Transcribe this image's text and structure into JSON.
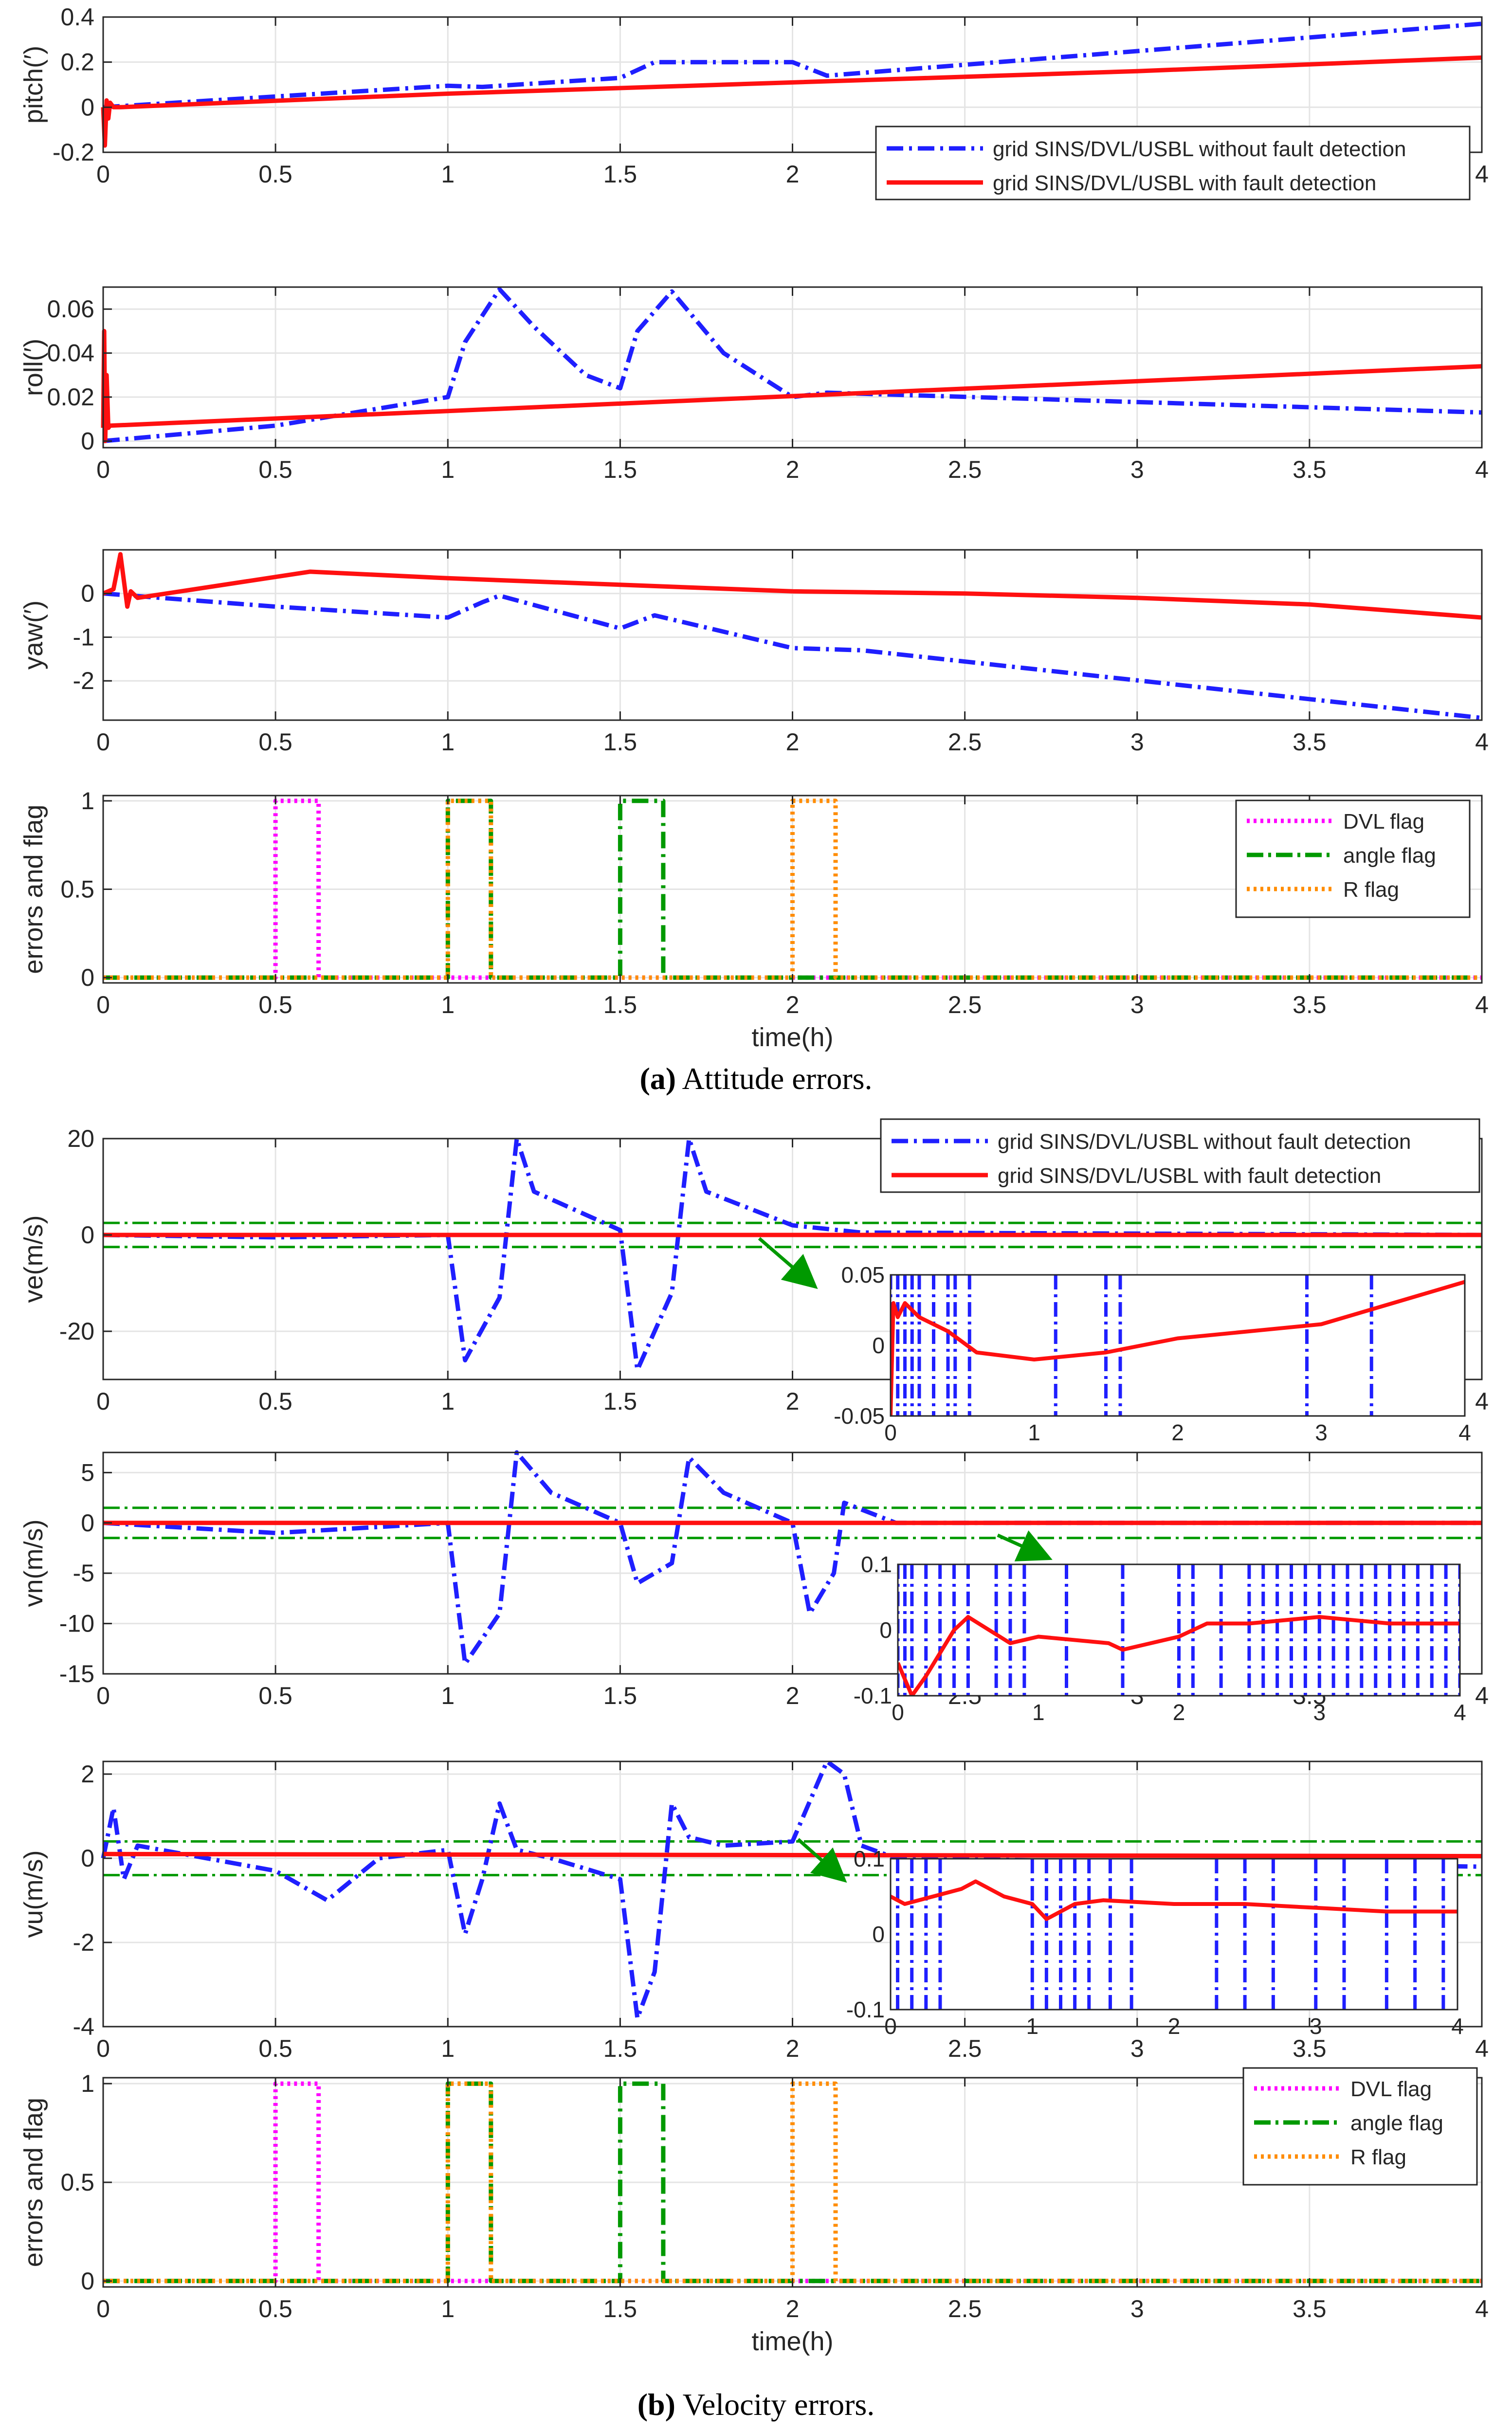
{
  "chart_data": [
    {
      "id": "pitch",
      "type": "line",
      "ylabel": "pitch(′)",
      "xlim": [
        0,
        4
      ],
      "ylim": [
        -0.2,
        0.4
      ],
      "yticks": [
        -0.2,
        0,
        0.2,
        0.4
      ],
      "ytick_labels": [
        "-0.2",
        "0",
        "0.2",
        "0.4"
      ],
      "xlabel": "",
      "series": [
        {
          "name": "without",
          "color": "#1f1fff",
          "style": "dashdot",
          "x": [
            0,
            1,
            1.1,
            1.5,
            1.6,
            2.0,
            2.1,
            4.0
          ],
          "y": [
            0,
            0.095,
            0.09,
            0.13,
            0.2,
            0.2,
            0.14,
            0.37
          ]
        },
        {
          "name": "with",
          "color": "#ff1010",
          "style": "solid",
          "x": [
            0,
            0.005,
            0.01,
            0.015,
            0.02,
            0.03,
            0.05,
            1,
            2,
            3,
            4
          ],
          "y": [
            0,
            -0.17,
            0.03,
            -0.05,
            0.02,
            0.0,
            0.0,
            0.06,
            0.11,
            0.16,
            0.22
          ]
        }
      ]
    },
    {
      "id": "roll",
      "type": "line",
      "ylabel": "roll(′)",
      "xlim": [
        0,
        4
      ],
      "ylim": [
        -0.003,
        0.07
      ],
      "yticks": [
        0,
        0.02,
        0.04,
        0.06
      ],
      "ytick_labels": [
        "0",
        "0.02",
        "0.04",
        "0.06"
      ],
      "xlabel": "",
      "series": [
        {
          "name": "without",
          "color": "#1f1fff",
          "style": "dashdot",
          "x": [
            0,
            0.5,
            1,
            1.05,
            1.15,
            1.25,
            1.4,
            1.5,
            1.55,
            1.65,
            1.8,
            2.0,
            2.1,
            4.0
          ],
          "y": [
            0,
            0.007,
            0.02,
            0.045,
            0.069,
            0.052,
            0.03,
            0.024,
            0.05,
            0.068,
            0.04,
            0.02,
            0.022,
            0.013
          ]
        },
        {
          "name": "with",
          "color": "#ff1010",
          "style": "solid",
          "x": [
            0,
            0.003,
            0.006,
            0.01,
            0.015,
            0.02,
            4
          ],
          "y": [
            0.006,
            0.05,
            0.0,
            0.03,
            0.006,
            0.007,
            0.034
          ]
        }
      ]
    },
    {
      "id": "yaw",
      "type": "line",
      "ylabel": "yaw(′)",
      "xlim": [
        0,
        4
      ],
      "ylim": [
        -2.9,
        1.0
      ],
      "yticks": [
        -2,
        -1,
        0
      ],
      "ytick_labels": [
        "-2",
        "-1",
        "0"
      ],
      "xlabel": "",
      "series": [
        {
          "name": "without",
          "color": "#1f1fff",
          "style": "dashdot",
          "x": [
            0,
            0.5,
            1,
            1.1,
            1.15,
            1.5,
            1.6,
            2.0,
            2.2,
            4.0
          ],
          "y": [
            0,
            -0.3,
            -0.55,
            -0.2,
            -0.05,
            -0.8,
            -0.5,
            -1.25,
            -1.3,
            -2.85
          ]
        },
        {
          "name": "with",
          "color": "#ff1010",
          "style": "solid",
          "x": [
            0,
            0.03,
            0.05,
            0.07,
            0.08,
            0.1,
            0.6,
            1.0,
            1.5,
            2.0,
            2.5,
            3.0,
            3.5,
            4.0
          ],
          "y": [
            0,
            0.1,
            0.9,
            -0.3,
            0.05,
            -0.1,
            0.5,
            0.35,
            0.2,
            0.05,
            0.0,
            -0.1,
            -0.25,
            -0.55
          ]
        }
      ]
    },
    {
      "id": "flags-attitude",
      "type": "line",
      "ylabel": "errors and flag",
      "xlim": [
        0,
        4
      ],
      "ylim": [
        -0.03,
        1.03
      ],
      "yticks": [
        0,
        0.5,
        1
      ],
      "ytick_labels": [
        "0",
        "0.5",
        "1"
      ],
      "xlabel": "time(h)",
      "series": [
        {
          "name": "DVL flag",
          "color": "#ff00ff",
          "style": "dotted",
          "x": [
            0,
            0.5,
            0.5,
            0.625,
            0.625,
            4
          ],
          "y": [
            0,
            0,
            1,
            1,
            0,
            0
          ]
        },
        {
          "name": "angle flag",
          "color": "#009900",
          "style": "dashdot",
          "x": [
            0,
            1.0,
            1.0,
            1.125,
            1.125,
            1.5,
            1.5,
            1.625,
            1.625,
            4
          ],
          "y": [
            0,
            0,
            1,
            1,
            0,
            0,
            1,
            1,
            0,
            0
          ]
        },
        {
          "name": "R flag",
          "color": "#ff8c00",
          "style": "dotted",
          "x": [
            0,
            1.0,
            1.0,
            1.125,
            1.125,
            2.0,
            2.0,
            2.125,
            2.125,
            4
          ],
          "y": [
            0,
            0,
            1,
            1,
            0,
            0,
            1,
            1,
            0,
            0
          ]
        }
      ]
    },
    {
      "id": "ve",
      "type": "line",
      "ylabel": "ve(m/s)",
      "xlim": [
        0,
        4
      ],
      "ylim": [
        -30,
        20
      ],
      "yticks": [
        -20,
        0,
        20
      ],
      "ytick_labels": [
        "-20",
        "0",
        "20"
      ],
      "xlabel": "",
      "band": 2.5,
      "series": [
        {
          "name": "without",
          "color": "#1f1fff",
          "style": "dashdot",
          "x": [
            0,
            0.5,
            1.0,
            1.05,
            1.15,
            1.2,
            1.25,
            1.5,
            1.55,
            1.65,
            1.7,
            1.75,
            2.0,
            2.2,
            4.0
          ],
          "y": [
            0,
            -0.5,
            0,
            -26,
            -13,
            20,
            9,
            1,
            -28,
            -12,
            20,
            9,
            2,
            0.5,
            0
          ]
        },
        {
          "name": "with",
          "color": "#ff1010",
          "style": "solid",
          "x": [
            0,
            4
          ],
          "y": [
            0,
            0
          ]
        }
      ]
    },
    {
      "id": "vn",
      "type": "line",
      "ylabel": "vn(m/s)",
      "xlim": [
        0,
        4
      ],
      "ylim": [
        -15,
        7
      ],
      "yticks": [
        -15,
        -10,
        -5,
        0,
        5
      ],
      "ytick_labels": [
        "-15",
        "-10",
        "-5",
        "0",
        "5"
      ],
      "xlabel": "",
      "band": 1.5,
      "series": [
        {
          "name": "without",
          "color": "#1f1fff",
          "style": "dashdot",
          "x": [
            0,
            0.5,
            1.0,
            1.05,
            1.15,
            1.2,
            1.3,
            1.5,
            1.55,
            1.65,
            1.7,
            1.8,
            2.0,
            2.05,
            2.12,
            2.15,
            2.3,
            4.0
          ],
          "y": [
            0,
            -1,
            0,
            -14,
            -9,
            7,
            3,
            0,
            -6,
            -4,
            6.5,
            3,
            0,
            -9,
            -5,
            2,
            0,
            0
          ]
        },
        {
          "name": "with",
          "color": "#ff1010",
          "style": "solid",
          "x": [
            0,
            4
          ],
          "y": [
            0,
            0
          ]
        }
      ]
    },
    {
      "id": "vu",
      "type": "line",
      "ylabel": "vu(m/s)",
      "xlim": [
        0,
        4
      ],
      "ylim": [
        -4,
        2.3
      ],
      "yticks": [
        -4,
        -2,
        0,
        2
      ],
      "ytick_labels": [
        "-4",
        "-2",
        "0",
        "2"
      ],
      "xlabel": "",
      "band": 0.4,
      "series": [
        {
          "name": "without",
          "color": "#1f1fff",
          "style": "dashdot",
          "x": [
            0,
            0.03,
            0.06,
            0.1,
            0.5,
            0.65,
            0.8,
            1.0,
            1.05,
            1.1,
            1.15,
            1.2,
            1.3,
            1.5,
            1.55,
            1.6,
            1.65,
            1.7,
            1.8,
            2.0,
            2.1,
            2.15,
            2.2,
            2.3,
            4.0
          ],
          "y": [
            0,
            1.2,
            -0.5,
            0.3,
            -0.3,
            -1.0,
            0,
            0.2,
            -1.8,
            -0.5,
            1.3,
            0.2,
            0,
            -0.5,
            -3.8,
            -2.7,
            1.3,
            0.5,
            0.3,
            0.4,
            2.3,
            2.0,
            0.3,
            0,
            -0.2
          ]
        },
        {
          "name": "with",
          "color": "#ff1010",
          "style": "solid",
          "x": [
            0,
            4
          ],
          "y": [
            0.1,
            0.05
          ]
        }
      ]
    },
    {
      "id": "flags-velocity",
      "type": "line",
      "ylabel": "errors and flag",
      "xlim": [
        0,
        4
      ],
      "ylim": [
        -0.03,
        1.03
      ],
      "yticks": [
        0,
        0.5,
        1
      ],
      "ytick_labels": [
        "0",
        "0.5",
        "1"
      ],
      "xlabel": "time(h)",
      "series": [
        {
          "name": "DVL flag",
          "color": "#ff00ff",
          "style": "dotted",
          "x": [
            0,
            0.5,
            0.5,
            0.625,
            0.625,
            4
          ],
          "y": [
            0,
            0,
            1,
            1,
            0,
            0
          ]
        },
        {
          "name": "angle flag",
          "color": "#009900",
          "style": "dashdot",
          "x": [
            0,
            1.0,
            1.0,
            1.125,
            1.125,
            1.5,
            1.5,
            1.625,
            1.625,
            4
          ],
          "y": [
            0,
            0,
            1,
            1,
            0,
            0,
            1,
            1,
            0,
            0
          ]
        },
        {
          "name": "R flag",
          "color": "#ff8c00",
          "style": "dotted",
          "x": [
            0,
            1.0,
            1.0,
            1.125,
            1.125,
            2.0,
            2.0,
            2.125,
            2.125,
            4
          ],
          "y": [
            0,
            0,
            1,
            1,
            0,
            0,
            1,
            1,
            0,
            0
          ]
        }
      ]
    }
  ],
  "insets": [
    {
      "parent": "ve",
      "xlim": [
        0,
        4
      ],
      "ylim": [
        -0.05,
        0.05
      ],
      "yticks": [
        -0.05,
        0,
        0.05
      ],
      "ytick_labels": [
        "-0.05",
        "0",
        "0.05"
      ],
      "red": {
        "x": [
          0,
          0.02,
          0.05,
          0.1,
          0.2,
          0.4,
          0.6,
          1.0,
          1.5,
          2.0,
          2.5,
          3.0,
          3.5,
          4.0
        ],
        "y": [
          -0.05,
          0.03,
          0.02,
          0.03,
          0.02,
          0.01,
          -0.005,
          -0.01,
          -0.005,
          0.005,
          0.01,
          0.015,
          0.03,
          0.045
        ]
      },
      "blue_x": [
        0.0,
        0.05,
        0.1,
        0.15,
        0.2,
        0.3,
        0.4,
        0.45,
        0.55,
        1.15,
        1.5,
        1.6,
        2.9,
        3.35
      ]
    },
    {
      "parent": "vn",
      "xlim": [
        0,
        4
      ],
      "ylim": [
        -0.1,
        0.1
      ],
      "yticks": [
        -0.1,
        0,
        0.1
      ],
      "ytick_labels": [
        "-0.1",
        "0",
        "0.1"
      ],
      "red": {
        "x": [
          0,
          0.1,
          0.2,
          0.4,
          0.5,
          0.8,
          1.0,
          1.5,
          1.6,
          1.8,
          2.0,
          2.2,
          2.5,
          3.0,
          3.5,
          4.0
        ],
        "y": [
          -0.05,
          -0.1,
          -0.07,
          0,
          0.02,
          -0.02,
          -0.01,
          -0.02,
          -0.03,
          -0.02,
          -0.01,
          0.01,
          0.01,
          0.02,
          0.01,
          0.01
        ]
      },
      "blue_x": [
        0.0,
        0.05,
        0.1,
        0.2,
        0.3,
        0.4,
        0.5,
        0.7,
        0.8,
        0.9,
        1.2,
        1.6,
        2.0,
        2.1,
        2.3,
        2.5,
        2.6,
        2.7,
        2.8,
        2.9,
        3.0,
        3.1,
        3.2,
        3.3,
        3.4,
        3.5,
        3.6,
        3.7,
        3.8,
        3.9,
        4.0
      ]
    },
    {
      "parent": "vu",
      "xlim": [
        0,
        4
      ],
      "ylim": [
        -0.1,
        0.1
      ],
      "yticks": [
        -0.1,
        0,
        0.1
      ],
      "ytick_labels": [
        "-0.1",
        "0",
        "0.1"
      ],
      "red": {
        "x": [
          0,
          0.05,
          0.1,
          0.3,
          0.5,
          0.6,
          0.8,
          1.0,
          1.1,
          1.3,
          1.5,
          2.0,
          2.5,
          3.0,
          3.5,
          4.0
        ],
        "y": [
          0.05,
          0.045,
          0.04,
          0.05,
          0.06,
          0.07,
          0.05,
          0.04,
          0.02,
          0.04,
          0.045,
          0.04,
          0.04,
          0.035,
          0.03,
          0.03
        ]
      },
      "blue_x": [
        0.05,
        0.15,
        0.25,
        0.35,
        1.0,
        1.1,
        1.2,
        1.3,
        1.4,
        1.55,
        1.7,
        2.3,
        2.5,
        2.7,
        3.0,
        3.2,
        3.5,
        3.7,
        3.9
      ]
    }
  ],
  "legends": {
    "lines": [
      "grid SINS/DVL/USBL without fault detection",
      "grid SINS/DVL/USBL with fault detection"
    ],
    "flags": [
      "DVL flag",
      "angle flag",
      "R flag"
    ]
  },
  "xtick_labels": [
    "0",
    "0.5",
    "1",
    "1.5",
    "2",
    "2.5",
    "3",
    "3.5",
    "4"
  ],
  "captions": {
    "a_label": "(a)",
    "a_text": "Attitude errors.",
    "b_label": "(b)",
    "b_text": "Velocity errors."
  },
  "colors": {
    "blue": "#1f1fff",
    "red": "#ff1010",
    "magenta": "#ff00ff",
    "green": "#009900",
    "orange": "#ff8c00",
    "grid": "#e4e4e4"
  }
}
